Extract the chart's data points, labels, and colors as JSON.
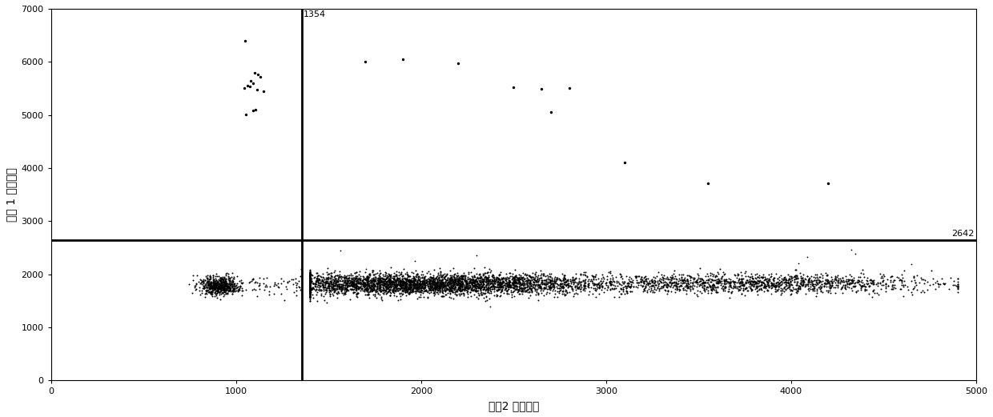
{
  "title": "",
  "xlabel_text": "通道2 信号强度",
  "ylabel_text": "通道 1 信号强度",
  "xlim": [
    0,
    5000
  ],
  "ylim": [
    0,
    7000
  ],
  "vline_x": 1354,
  "hline_y": 2642,
  "vline_label": "1354",
  "hline_label": "2642",
  "background_color": "#ffffff",
  "point_color": "#000000",
  "line_color": "#000000",
  "marker_size": 2.0,
  "xticks": [
    0,
    1000,
    2000,
    3000,
    4000,
    5000
  ],
  "yticks": [
    0,
    1000,
    2000,
    3000,
    4000,
    5000,
    6000,
    7000
  ],
  "seed": 12345,
  "outliers_upper_left": [
    [
      1050,
      6400
    ],
    [
      1100,
      5800
    ],
    [
      1120,
      5760
    ],
    [
      1130,
      5720
    ],
    [
      1080,
      5650
    ],
    [
      1090,
      5600
    ],
    [
      1060,
      5550
    ],
    [
      1075,
      5530
    ],
    [
      1045,
      5500
    ],
    [
      1115,
      5480
    ],
    [
      1150,
      5450
    ],
    [
      1105,
      5100
    ],
    [
      1090,
      5090
    ],
    [
      1055,
      5010
    ]
  ],
  "outliers_upper_right": [
    [
      1700,
      6000
    ],
    [
      2200,
      5980
    ],
    [
      2800,
      5500
    ],
    [
      2650,
      5490
    ],
    [
      2700,
      5050
    ],
    [
      3100,
      4100
    ],
    [
      3550,
      3720
    ],
    [
      4200,
      3710
    ],
    [
      1900,
      6050
    ],
    [
      2500,
      5520
    ]
  ]
}
